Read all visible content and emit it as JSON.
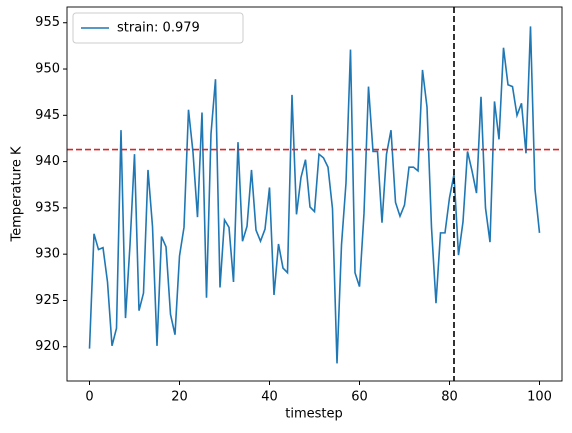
{
  "chart_data": {
    "type": "line",
    "xlabel": "timestep",
    "ylabel": "Temperature K",
    "x": [
      0,
      1,
      2,
      3,
      4,
      5,
      6,
      7,
      8,
      9,
      10,
      11,
      12,
      13,
      14,
      15,
      16,
      17,
      18,
      19,
      20,
      21,
      22,
      23,
      24,
      25,
      26,
      27,
      28,
      29,
      30,
      31,
      32,
      33,
      34,
      35,
      36,
      37,
      38,
      39,
      40,
      41,
      42,
      43,
      44,
      45,
      46,
      47,
      48,
      49,
      50,
      51,
      52,
      53,
      54,
      55,
      56,
      57,
      58,
      59,
      60,
      61,
      62,
      63,
      64,
      65,
      66,
      67,
      68,
      69,
      70,
      71,
      72,
      73,
      74,
      75,
      76,
      77,
      78,
      79,
      80,
      81,
      82,
      83,
      84,
      85,
      86,
      87,
      88,
      89,
      90,
      91,
      92,
      93,
      94,
      95,
      96,
      97,
      98,
      99,
      100
    ],
    "series": [
      {
        "name": "strain: 0.979",
        "color": "#1f77b4",
        "values": [
          919.8,
          932.2,
          930.5,
          930.7,
          927,
          920.1,
          922,
          943.4,
          923.1,
          931,
          940.8,
          923.9,
          925.8,
          939.1,
          933,
          920.1,
          931.9,
          930.8,
          923.5,
          921.3,
          929.8,
          932.9,
          945.6,
          941,
          934,
          945.3,
          925.3,
          943,
          948.9,
          926.4,
          933.7,
          932.9,
          927,
          942.1,
          931.4,
          933,
          939.1,
          932.6,
          931.4,
          932.7,
          937.2,
          925.6,
          931.1,
          928.5,
          928,
          947.2,
          934.3,
          938.3,
          940.2,
          935.1,
          934.6,
          940.8,
          940.4,
          939.4,
          934.9,
          918.2,
          931,
          937.7,
          952.1,
          928,
          926.5,
          934.4,
          948.1,
          941.1,
          941.1,
          933.4,
          940.8,
          943.4,
          935.6,
          934.1,
          935.3,
          939.4,
          939.4,
          939,
          949.9,
          945.9,
          932.9,
          924.7,
          932.3,
          932.3,
          936.1,
          938.6,
          929.9,
          933.5,
          941.1,
          939,
          936.6,
          947,
          935,
          931.3,
          946.5,
          942.4,
          952.3,
          948.3,
          948.1,
          945,
          946.3,
          940.9,
          954.6,
          937,
          932.3
        ]
      }
    ],
    "hline": {
      "y": 941.3,
      "color": "#d62728"
    },
    "vline": {
      "x": 81,
      "color": "#000000"
    },
    "xlim": [
      -5,
      105
    ],
    "ylim": [
      916.3,
      956.7
    ],
    "xticks": [
      0,
      20,
      40,
      60,
      80,
      100
    ],
    "yticks": [
      920,
      925,
      930,
      935,
      940,
      945,
      950,
      955
    ],
    "legend": "upper left"
  }
}
